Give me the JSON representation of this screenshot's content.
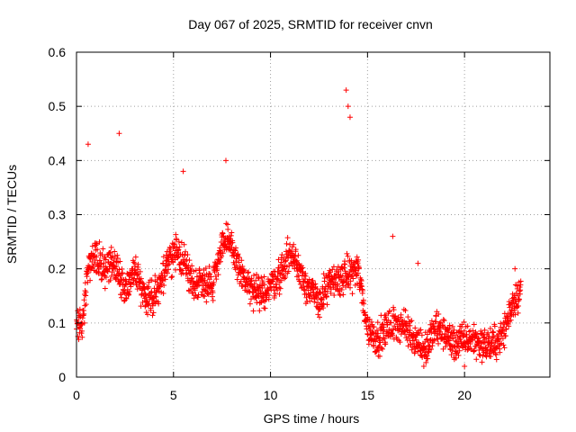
{
  "chart_data": {
    "type": "scatter",
    "title": "Day 067 of 2025, SRMTID for receiver cnvn",
    "xlabel": "GPS time / hours",
    "ylabel": "SRMTID / TECUs",
    "xlim": [
      0,
      24.4
    ],
    "ylim": [
      0,
      0.6
    ],
    "xticks": [
      0,
      5,
      10,
      15,
      20
    ],
    "xtick_labels": [
      "0",
      "5",
      "10",
      "15",
      "20"
    ],
    "yticks": [
      0,
      0.1,
      0.2,
      0.3,
      0.4,
      0.5,
      0.6
    ],
    "ytick_labels": [
      "0",
      "0.1",
      "0.2",
      "0.3",
      "0.4",
      "0.5",
      "0.6"
    ],
    "grid": true,
    "marker": "+",
    "color": "#ff0000",
    "series": [
      {
        "name": "cnvn",
        "trend": {
          "x": [
            0,
            0.3,
            0.6,
            1.0,
            1.5,
            2.0,
            2.5,
            3.0,
            3.5,
            4.0,
            4.5,
            5.0,
            5.5,
            6.0,
            6.5,
            7.0,
            7.5,
            8.0,
            8.5,
            9.0,
            9.5,
            10.0,
            10.5,
            11.0,
            11.5,
            12.0,
            12.5,
            13.0,
            13.5,
            14.0,
            14.5,
            15.0,
            15.5,
            16.0,
            16.5,
            17.0,
            17.5,
            18.0,
            18.5,
            19.0,
            19.5,
            20.0,
            20.5,
            21.0,
            21.5,
            22.0,
            22.5,
            22.9
          ],
          "y": [
            0.1,
            0.1,
            0.2,
            0.22,
            0.2,
            0.21,
            0.16,
            0.2,
            0.15,
            0.15,
            0.19,
            0.23,
            0.22,
            0.17,
            0.18,
            0.17,
            0.25,
            0.24,
            0.19,
            0.16,
            0.15,
            0.17,
            0.19,
            0.23,
            0.2,
            0.16,
            0.14,
            0.17,
            0.18,
            0.19,
            0.2,
            0.09,
            0.07,
            0.09,
            0.1,
            0.09,
            0.07,
            0.05,
            0.09,
            0.08,
            0.06,
            0.07,
            0.07,
            0.06,
            0.06,
            0.08,
            0.14,
            0.16
          ]
        },
        "spread": 0.045,
        "count": 1800,
        "peaks": [
          {
            "x": 0.6,
            "y": 0.43
          },
          {
            "x": 2.2,
            "y": 0.45
          },
          {
            "x": 5.5,
            "y": 0.38
          },
          {
            "x": 7.7,
            "y": 0.4
          },
          {
            "x": 13.9,
            "y": 0.53
          },
          {
            "x": 14.0,
            "y": 0.5
          },
          {
            "x": 14.1,
            "y": 0.48
          },
          {
            "x": 16.3,
            "y": 0.26
          },
          {
            "x": 17.6,
            "y": 0.21
          },
          {
            "x": 17.9,
            "y": 0.02
          },
          {
            "x": 20.0,
            "y": 0.02
          },
          {
            "x": 22.6,
            "y": 0.2
          }
        ]
      }
    ]
  }
}
